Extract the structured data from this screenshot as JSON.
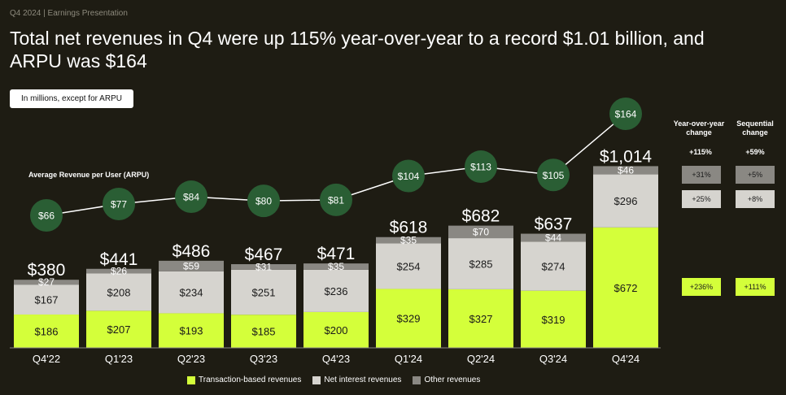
{
  "header": {
    "eyebrow": "Q4 2024 | Earnings Presentation",
    "title": "Total net revenues in Q4 were up 115% year-over-year to a record $1.01 billion, and ARPU was $164",
    "units_note": "In millions, except for ARPU"
  },
  "colors": {
    "background": "#1e1c13",
    "transaction": "#d4ff3a",
    "net_interest": "#d6d4cf",
    "other": "#8a8883",
    "arpu_circle": "#2a5e34"
  },
  "chart_data": {
    "type": "bar",
    "stacked": true,
    "categories": [
      "Q4'22",
      "Q1'23",
      "Q2'23",
      "Q3'23",
      "Q4'23",
      "Q1'24",
      "Q2'24",
      "Q3'24",
      "Q4'24"
    ],
    "series": [
      {
        "name": "Transaction-based revenues",
        "values": [
          186,
          207,
          193,
          185,
          200,
          329,
          327,
          319,
          672
        ]
      },
      {
        "name": "Net interest revenues",
        "values": [
          167,
          208,
          234,
          251,
          236,
          254,
          285,
          274,
          296
        ]
      },
      {
        "name": "Other revenues",
        "values": [
          27,
          26,
          59,
          31,
          35,
          35,
          70,
          44,
          46
        ]
      }
    ],
    "totals": [
      "$380",
      "$441",
      "$486",
      "$467",
      "$471",
      "$618",
      "$682",
      "$637",
      "$1,014"
    ],
    "value_labels": [
      [
        "$186",
        "$207",
        "$193",
        "$185",
        "$200",
        "$329",
        "$327",
        "$319",
        "$672"
      ],
      [
        "$167",
        "$208",
        "$234",
        "$251",
        "$236",
        "$254",
        "$285",
        "$274",
        "$296"
      ],
      [
        "$27",
        "$26",
        "$59",
        "$31",
        "$35",
        "$35",
        "$70",
        "$44",
        "$46"
      ]
    ],
    "arpu": {
      "label": "Average Revenue per User (ARPU)",
      "values": [
        66,
        77,
        84,
        80,
        81,
        104,
        113,
        105,
        164
      ],
      "labels": [
        "$66",
        "$77",
        "$84",
        "$80",
        "$81",
        "$104",
        "$113",
        "$105",
        "$164"
      ]
    },
    "legend": [
      "Transaction-based revenues",
      "Net interest revenues",
      "Other revenues"
    ],
    "legend_position": "bottom"
  },
  "changes": {
    "yoy_header": "Year-over-year change",
    "seq_header": "Sequential change",
    "total": {
      "yoy": "+115%",
      "seq": "+59%"
    },
    "other": {
      "yoy": "+31%",
      "seq": "+5%"
    },
    "net_interest": {
      "yoy": "+25%",
      "seq": "+8%"
    },
    "transaction": {
      "yoy": "+236%",
      "seq": "+111%"
    }
  }
}
